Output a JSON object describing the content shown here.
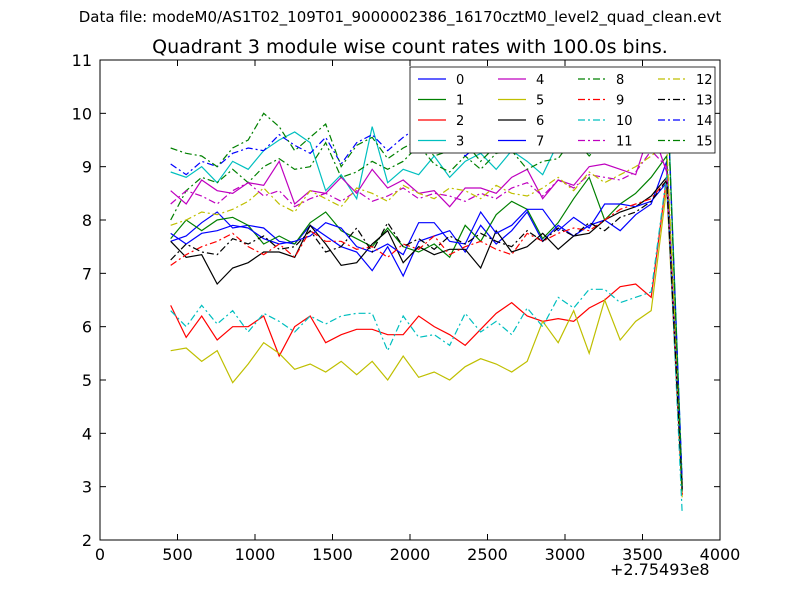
{
  "suptitle": "Data file: modeM0/AS1T02_109T01_9000002386_16170cztM0_level2_quad_clean.evt",
  "x_offset_label": "+2.75493e8",
  "chart_data": {
    "type": "line",
    "title": "Quadrant 3 module wise count rates with 100.0s bins.",
    "xlabel": "",
    "ylabel": "",
    "xlim": [
      0,
      4000
    ],
    "ylim": [
      2,
      11
    ],
    "xticks": [
      0,
      500,
      1000,
      1500,
      2000,
      2500,
      3000,
      3500,
      4000
    ],
    "yticks": [
      2,
      3,
      4,
      5,
      6,
      7,
      8,
      9,
      10,
      11
    ],
    "grid": false,
    "legend": "top-right",
    "x": [
      456,
      556,
      656,
      756,
      856,
      956,
      1056,
      1156,
      1256,
      1356,
      1456,
      1556,
      1656,
      1756,
      1856,
      1956,
      2056,
      2156,
      2256,
      2356,
      2456,
      2556,
      2656,
      2756,
      2856,
      2956,
      3056,
      3156,
      3256,
      3356,
      3456,
      3556,
      3656,
      3756
    ],
    "series": [
      {
        "name": "0",
        "color": "#0000ff",
        "dash": "solid",
        "values": [
          7.6,
          7.7,
          7.95,
          8.15,
          7.85,
          7.9,
          7.85,
          7.6,
          7.55,
          7.9,
          7.7,
          7.5,
          7.4,
          7.05,
          7.5,
          6.95,
          7.6,
          7.7,
          7.8,
          7.4,
          7.9,
          7.55,
          7.8,
          8.15,
          7.6,
          7.9,
          7.7,
          7.9,
          8.0,
          7.8,
          8.1,
          8.3,
          9.1,
          2.9
        ]
      },
      {
        "name": "1",
        "color": "#008000",
        "dash": "solid",
        "values": [
          7.65,
          8.0,
          7.8,
          8.0,
          8.05,
          7.9,
          7.55,
          7.7,
          7.55,
          7.95,
          8.15,
          7.8,
          7.65,
          7.5,
          7.85,
          7.5,
          7.4,
          7.55,
          7.3,
          7.9,
          7.6,
          8.1,
          8.35,
          8.2,
          7.65,
          7.95,
          8.4,
          8.8,
          8.0,
          8.3,
          8.5,
          8.8,
          9.2,
          3.0
        ]
      },
      {
        "name": "2",
        "color": "#ff0000",
        "dash": "solid",
        "values": [
          6.4,
          5.8,
          6.2,
          5.75,
          6.0,
          6.0,
          6.2,
          5.45,
          6.0,
          6.2,
          5.7,
          5.85,
          5.95,
          5.95,
          5.85,
          5.85,
          6.2,
          6.0,
          5.85,
          5.65,
          5.95,
          6.25,
          6.45,
          6.2,
          6.1,
          6.15,
          6.1,
          6.35,
          6.5,
          6.75,
          6.8,
          6.55,
          8.8,
          2.85
        ]
      },
      {
        "name": "3",
        "color": "#00bfbf",
        "dash": "solid",
        "values": [
          8.9,
          8.8,
          9.0,
          8.7,
          9.1,
          8.95,
          9.3,
          9.5,
          9.65,
          9.45,
          8.55,
          8.85,
          8.4,
          9.75,
          8.7,
          8.95,
          8.85,
          9.2,
          8.8,
          9.1,
          9.25,
          8.95,
          9.3,
          9.1,
          8.85,
          9.45,
          9.55,
          9.25,
          9.7,
          9.4,
          9.95,
          10.15,
          10.75,
          3.1
        ]
      },
      {
        "name": "4",
        "color": "#bf00bf",
        "dash": "solid",
        "values": [
          8.55,
          8.3,
          8.75,
          8.55,
          8.5,
          8.7,
          8.65,
          9.1,
          8.3,
          8.55,
          8.5,
          8.8,
          8.5,
          8.95,
          8.6,
          8.75,
          8.5,
          8.55,
          8.25,
          8.6,
          8.6,
          8.5,
          8.8,
          8.95,
          8.4,
          8.75,
          8.65,
          9.0,
          9.05,
          8.95,
          8.85,
          9.75,
          8.9,
          3.05
        ]
      },
      {
        "name": "5",
        "color": "#bfbf00",
        "dash": "solid",
        "values": [
          5.55,
          5.6,
          5.35,
          5.55,
          4.95,
          5.3,
          5.7,
          5.5,
          5.2,
          5.3,
          5.15,
          5.35,
          5.1,
          5.35,
          5.0,
          5.45,
          5.05,
          5.15,
          5.0,
          5.25,
          5.4,
          5.3,
          5.15,
          5.35,
          6.1,
          5.7,
          6.3,
          5.5,
          6.5,
          5.75,
          6.1,
          6.3,
          8.6,
          2.8
        ]
      },
      {
        "name": "6",
        "color": "#000000",
        "dash": "solid",
        "values": [
          7.6,
          7.3,
          7.35,
          6.8,
          7.1,
          7.2,
          7.4,
          7.4,
          7.3,
          7.9,
          7.55,
          7.15,
          7.2,
          7.55,
          7.8,
          7.2,
          7.5,
          7.35,
          7.45,
          7.45,
          7.1,
          7.8,
          7.4,
          7.5,
          7.75,
          7.45,
          7.7,
          7.75,
          8.0,
          8.15,
          8.25,
          8.45,
          8.8,
          3.0
        ]
      },
      {
        "name": "7",
        "color": "#0000ff",
        "dash": "solid",
        "values": [
          7.75,
          7.55,
          7.75,
          7.8,
          7.9,
          7.85,
          7.65,
          7.55,
          7.6,
          7.7,
          7.95,
          7.85,
          7.5,
          7.4,
          7.55,
          7.35,
          7.95,
          7.95,
          7.6,
          7.55,
          8.15,
          7.75,
          7.9,
          8.2,
          8.2,
          7.8,
          8.05,
          7.85,
          8.3,
          8.3,
          8.25,
          8.35,
          8.7,
          2.95
        ]
      },
      {
        "name": "8",
        "color": "#008000",
        "dash": "dashdot",
        "values": [
          8.0,
          8.55,
          8.8,
          8.7,
          8.95,
          8.7,
          9.0,
          9.15,
          8.95,
          9.0,
          9.45,
          8.8,
          8.9,
          9.1,
          8.95,
          9.1,
          9.4,
          9.05,
          8.9,
          9.2,
          8.95,
          9.25,
          9.3,
          8.95,
          9.1,
          9.15,
          9.55,
          9.2,
          9.5,
          9.3,
          9.6,
          10.15,
          10.6,
          3.0
        ]
      },
      {
        "name": "9",
        "color": "#ff0000",
        "dash": "dashdot",
        "values": [
          7.15,
          7.35,
          7.5,
          7.6,
          7.75,
          7.5,
          7.35,
          7.55,
          7.3,
          7.8,
          7.6,
          7.6,
          7.45,
          7.5,
          7.3,
          7.55,
          7.45,
          7.7,
          7.35,
          7.5,
          7.6,
          7.45,
          7.35,
          7.75,
          7.6,
          7.75,
          7.85,
          7.8,
          8.0,
          8.2,
          8.3,
          8.4,
          8.75,
          2.85
        ]
      },
      {
        "name": "10",
        "color": "#00bfbf",
        "dash": "dashdot",
        "values": [
          6.3,
          6.0,
          6.4,
          6.05,
          6.3,
          5.9,
          6.25,
          6.1,
          5.9,
          6.2,
          6.05,
          6.2,
          6.25,
          6.25,
          5.55,
          6.2,
          5.8,
          5.85,
          5.65,
          6.25,
          5.9,
          6.1,
          5.85,
          6.35,
          6.0,
          6.55,
          6.35,
          6.7,
          6.7,
          6.45,
          6.55,
          6.65,
          8.85,
          2.5
        ]
      },
      {
        "name": "11",
        "color": "#bf00bf",
        "dash": "dashdot",
        "values": [
          8.3,
          8.55,
          8.45,
          8.3,
          8.55,
          8.7,
          8.45,
          8.55,
          8.25,
          8.4,
          8.5,
          8.35,
          8.55,
          8.35,
          8.45,
          8.6,
          8.4,
          8.5,
          8.45,
          8.35,
          8.5,
          8.4,
          8.6,
          8.7,
          8.45,
          8.75,
          8.6,
          8.85,
          8.8,
          8.75,
          8.9,
          9.3,
          9.0,
          3.05
        ]
      },
      {
        "name": "12",
        "color": "#bfbf00",
        "dash": "dashdot",
        "values": [
          7.9,
          8.0,
          8.15,
          8.1,
          8.2,
          8.35,
          8.6,
          8.3,
          8.15,
          8.55,
          8.4,
          8.25,
          8.6,
          8.5,
          8.35,
          8.65,
          8.5,
          8.4,
          8.6,
          8.55,
          8.4,
          8.65,
          8.5,
          8.45,
          8.6,
          8.8,
          8.55,
          8.9,
          8.7,
          8.85,
          9.0,
          9.2,
          9.45,
          3.0
        ]
      },
      {
        "name": "13",
        "color": "#000000",
        "dash": "dashdot",
        "values": [
          7.25,
          7.55,
          7.4,
          7.35,
          7.65,
          7.55,
          7.7,
          7.45,
          7.5,
          7.8,
          7.4,
          7.5,
          7.85,
          7.4,
          7.95,
          7.5,
          7.65,
          7.45,
          7.7,
          7.55,
          7.75,
          7.6,
          7.5,
          7.8,
          7.6,
          7.85,
          7.7,
          7.95,
          7.8,
          8.05,
          8.15,
          8.35,
          8.75,
          2.95
        ]
      },
      {
        "name": "14",
        "color": "#0000ff",
        "dash": "dashdot",
        "values": [
          9.05,
          8.85,
          9.1,
          9.0,
          9.25,
          9.35,
          9.3,
          9.6,
          9.4,
          9.25,
          9.55,
          9.05,
          9.45,
          9.6,
          9.3,
          9.55,
          9.75,
          9.35,
          9.5,
          9.2,
          9.45,
          9.6,
          9.3,
          9.7,
          9.45,
          9.75,
          9.55,
          9.85,
          9.65,
          9.95,
          10.05,
          10.2,
          10.6,
          3.1
        ]
      },
      {
        "name": "15",
        "color": "#008000",
        "dash": "dashdot",
        "values": [
          9.35,
          9.25,
          9.2,
          9.0,
          9.35,
          9.5,
          10.0,
          9.75,
          9.3,
          9.55,
          9.8,
          9.0,
          9.4,
          9.55,
          9.15,
          9.35,
          9.5,
          9.2,
          9.3,
          9.45,
          9.1,
          9.4,
          9.55,
          9.25,
          9.5,
          9.4,
          9.6,
          9.35,
          9.75,
          9.55,
          9.85,
          10.1,
          10.7,
          2.9
        ]
      }
    ]
  }
}
